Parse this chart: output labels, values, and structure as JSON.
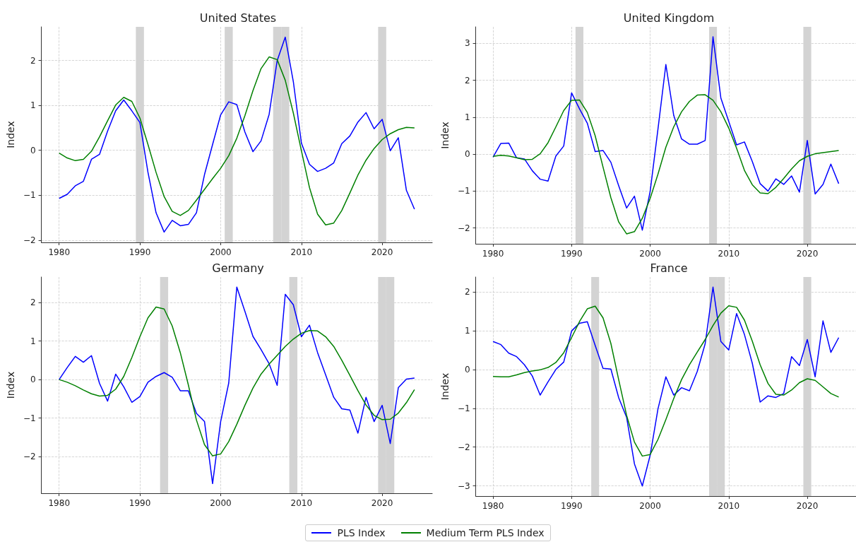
{
  "chart_data": [
    {
      "type": "line",
      "title": "United States",
      "ylabel": "Index",
      "xlim": [
        1977.8,
        2026.2
      ],
      "ylim": [
        -2.05,
        2.75
      ],
      "xticks": [
        1980,
        1990,
        2000,
        2010,
        2020
      ],
      "yticks": [
        -2,
        -1,
        0,
        1,
        2
      ],
      "grid": true,
      "legend": "bottom",
      "x": [
        1980,
        1981,
        1982,
        1983,
        1984,
        1985,
        1986,
        1987,
        1988,
        1989,
        1990,
        1991,
        1992,
        1993,
        1994,
        1995,
        1996,
        1997,
        1998,
        1999,
        2000,
        2001,
        2002,
        2003,
        2004,
        2005,
        2006,
        2007,
        2008,
        2009,
        2010,
        2011,
        2012,
        2013,
        2014,
        2015,
        2016,
        2017,
        2018,
        2019,
        2020,
        2021,
        2022,
        2023,
        2024
      ],
      "series": [
        {
          "name": "PLS Index",
          "color": "#0000ff",
          "values": [
            -1.07,
            -0.98,
            -0.79,
            -0.69,
            -0.2,
            -0.09,
            0.43,
            0.88,
            1.12,
            0.88,
            0.62,
            -0.49,
            -1.39,
            -1.82,
            -1.56,
            -1.68,
            -1.65,
            -1.39,
            -0.54,
            0.13,
            0.79,
            1.08,
            1.02,
            0.41,
            -0.03,
            0.21,
            0.8,
            2.0,
            2.52,
            1.53,
            0.16,
            -0.31,
            -0.47,
            -0.4,
            -0.28,
            0.15,
            0.32,
            0.63,
            0.84,
            0.48,
            0.69,
            -0.01,
            0.28,
            -0.89,
            -1.31
          ]
        },
        {
          "name": "Medium Term PLS Index",
          "color": "#008000",
          "values": [
            -0.06,
            -0.17,
            -0.23,
            -0.2,
            -0.02,
            0.3,
            0.66,
            1.01,
            1.18,
            1.09,
            0.72,
            0.13,
            -0.49,
            -1.03,
            -1.36,
            -1.45,
            -1.34,
            -1.11,
            -0.87,
            -0.63,
            -0.4,
            -0.12,
            0.27,
            0.77,
            1.33,
            1.82,
            2.08,
            2.02,
            1.56,
            0.83,
            -0.01,
            -0.83,
            -1.42,
            -1.66,
            -1.62,
            -1.34,
            -0.95,
            -0.55,
            -0.22,
            0.04,
            0.24,
            0.37,
            0.46,
            0.51,
            0.5
          ]
        }
      ],
      "bands": [
        {
          "axis": "x",
          "from": 1989.5,
          "to": 1990.5,
          "color": "#d3d3d3"
        },
        {
          "axis": "x",
          "from": 2000.5,
          "to": 2001.5,
          "color": "#d3d3d3"
        },
        {
          "axis": "x",
          "from": 2006.5,
          "to": 2007.5,
          "color": "#d3d3d3"
        },
        {
          "axis": "x",
          "from": 2007.5,
          "to": 2008.5,
          "color": "#d3d3d3"
        },
        {
          "axis": "x",
          "from": 2019.5,
          "to": 2020.5,
          "color": "#d3d3d3"
        }
      ]
    },
    {
      "type": "line",
      "title": "United Kingdom",
      "ylabel": "Index",
      "xlim": [
        1977.8,
        2026.2
      ],
      "ylim": [
        -2.43,
        3.45
      ],
      "xticks": [
        1980,
        1990,
        2000,
        2010,
        2020
      ],
      "yticks": [
        -2,
        -1,
        0,
        1,
        2,
        3
      ],
      "grid": true,
      "x": [
        1980,
        1981,
        1982,
        1983,
        1984,
        1985,
        1986,
        1987,
        1988,
        1989,
        1990,
        1991,
        1992,
        1993,
        1994,
        1995,
        1996,
        1997,
        1998,
        1999,
        2000,
        2001,
        2002,
        2003,
        2004,
        2005,
        2006,
        2007,
        2008,
        2009,
        2010,
        2011,
        2012,
        2013,
        2014,
        2015,
        2016,
        2017,
        2018,
        2019,
        2020,
        2021,
        2022,
        2023,
        2024
      ],
      "series": [
        {
          "color": "#0000ff",
          "values": [
            -0.08,
            0.29,
            0.3,
            -0.1,
            -0.13,
            -0.45,
            -0.68,
            -0.73,
            -0.05,
            0.22,
            1.66,
            1.23,
            0.84,
            0.07,
            0.1,
            -0.22,
            -0.86,
            -1.46,
            -1.14,
            -2.06,
            -1.01,
            0.69,
            2.43,
            1.05,
            0.41,
            0.27,
            0.27,
            0.37,
            3.18,
            1.52,
            0.89,
            0.25,
            0.33,
            -0.2,
            -0.8,
            -1.0,
            -0.67,
            -0.82,
            -0.59,
            -1.03,
            0.37,
            -1.08,
            -0.82,
            -0.27,
            -0.8
          ]
        },
        {
          "color": "#008000",
          "values": [
            -0.06,
            -0.03,
            -0.05,
            -0.1,
            -0.15,
            -0.14,
            0.01,
            0.31,
            0.74,
            1.18,
            1.46,
            1.47,
            1.13,
            0.5,
            -0.35,
            -1.18,
            -1.84,
            -2.16,
            -2.1,
            -1.74,
            -1.2,
            -0.54,
            0.19,
            0.74,
            1.15,
            1.43,
            1.6,
            1.61,
            1.46,
            1.15,
            0.71,
            0.16,
            -0.44,
            -0.83,
            -1.05,
            -1.07,
            -0.9,
            -0.66,
            -0.4,
            -0.18,
            -0.06,
            0.01,
            0.04,
            0.07,
            0.1
          ]
        }
      ],
      "bands": [
        {
          "axis": "x",
          "from": 1990.5,
          "to": 1991.5,
          "color": "#d3d3d3"
        },
        {
          "axis": "x",
          "from": 2007.5,
          "to": 2008.5,
          "color": "#d3d3d3"
        },
        {
          "axis": "x",
          "from": 2019.5,
          "to": 2020.5,
          "color": "#d3d3d3"
        }
      ]
    },
    {
      "type": "line",
      "title": "Germany",
      "ylabel": "Index",
      "xlim": [
        1977.8,
        2026.2
      ],
      "ylim": [
        -2.95,
        2.66
      ],
      "xticks": [
        1980,
        1990,
        2000,
        2010,
        2020
      ],
      "yticks": [
        -2,
        -1,
        0,
        1,
        2
      ],
      "grid": true,
      "x": [
        1980,
        1981,
        1982,
        1983,
        1984,
        1985,
        1986,
        1987,
        1988,
        1989,
        1990,
        1991,
        1992,
        1993,
        1994,
        1995,
        1996,
        1997,
        1998,
        1999,
        2000,
        2001,
        2002,
        2003,
        2004,
        2005,
        2006,
        2007,
        2008,
        2009,
        2010,
        2011,
        2012,
        2013,
        2014,
        2015,
        2016,
        2017,
        2018,
        2019,
        2020,
        2021,
        2022,
        2023,
        2024
      ],
      "series": [
        {
          "color": "#0000ff",
          "values": [
            0.0,
            0.31,
            0.6,
            0.45,
            0.62,
            -0.1,
            -0.56,
            0.14,
            -0.19,
            -0.59,
            -0.44,
            -0.07,
            0.08,
            0.18,
            0.06,
            -0.29,
            -0.29,
            -0.88,
            -1.09,
            -2.7,
            -1.09,
            -0.09,
            2.4,
            1.77,
            1.12,
            0.78,
            0.41,
            -0.15,
            2.21,
            1.94,
            1.11,
            1.41,
            0.7,
            0.12,
            -0.46,
            -0.76,
            -0.79,
            -1.39,
            -0.46,
            -1.09,
            -0.67,
            -1.66,
            -0.21,
            0.01,
            0.04
          ]
        },
        {
          "color": "#008000",
          "values": [
            0.0,
            -0.07,
            -0.16,
            -0.27,
            -0.37,
            -0.43,
            -0.41,
            -0.25,
            0.08,
            0.57,
            1.11,
            1.6,
            1.88,
            1.83,
            1.39,
            0.7,
            -0.14,
            -1.05,
            -1.69,
            -1.98,
            -1.93,
            -1.61,
            -1.16,
            -0.67,
            -0.22,
            0.14,
            0.4,
            0.63,
            0.86,
            1.05,
            1.2,
            1.27,
            1.26,
            1.11,
            0.86,
            0.5,
            0.11,
            -0.29,
            -0.66,
            -0.93,
            -1.04,
            -1.03,
            -0.87,
            -0.6,
            -0.26
          ]
        }
      ],
      "bands": [
        {
          "axis": "x",
          "from": 1992.5,
          "to": 1993.5,
          "color": "#d3d3d3"
        },
        {
          "axis": "x",
          "from": 2008.5,
          "to": 2009.5,
          "color": "#d3d3d3"
        },
        {
          "axis": "x",
          "from": 2019.5,
          "to": 2020.5,
          "color": "#d3d3d3"
        },
        {
          "axis": "x",
          "from": 2020.5,
          "to": 2021.5,
          "color": "#d3d3d3"
        }
      ]
    },
    {
      "type": "line",
      "title": "France",
      "ylabel": "Index",
      "xlim": [
        1977.8,
        2026.2
      ],
      "ylim": [
        -3.26,
        2.38
      ],
      "xticks": [
        1980,
        1990,
        2000,
        2010,
        2020
      ],
      "yticks": [
        -3,
        -2,
        -1,
        0,
        1,
        2
      ],
      "grid": true,
      "x": [
        1980,
        1981,
        1982,
        1983,
        1984,
        1985,
        1986,
        1987,
        1988,
        1989,
        1990,
        1991,
        1992,
        1993,
        1994,
        1995,
        1996,
        1997,
        1998,
        1999,
        2000,
        2001,
        2002,
        2003,
        2004,
        2005,
        2006,
        2007,
        2008,
        2009,
        2010,
        2011,
        2012,
        2013,
        2014,
        2015,
        2016,
        2017,
        2018,
        2019,
        2020,
        2021,
        2022,
        2023,
        2024
      ],
      "series": [
        {
          "color": "#0000ff",
          "values": [
            0.72,
            0.64,
            0.42,
            0.33,
            0.12,
            -0.17,
            -0.66,
            -0.32,
            0.0,
            0.19,
            0.99,
            1.19,
            1.23,
            0.62,
            0.03,
            0.01,
            -0.73,
            -1.23,
            -2.43,
            -3.0,
            -2.21,
            -1.01,
            -0.19,
            -0.66,
            -0.47,
            -0.55,
            -0.05,
            0.66,
            2.12,
            0.72,
            0.5,
            1.44,
            0.9,
            0.16,
            -0.84,
            -0.68,
            -0.72,
            -0.62,
            0.33,
            0.1,
            0.77,
            -0.19,
            1.25,
            0.44,
            0.82
          ]
        },
        {
          "color": "#008000",
          "values": [
            -0.18,
            -0.19,
            -0.19,
            -0.14,
            -0.08,
            -0.04,
            -0.01,
            0.05,
            0.18,
            0.43,
            0.82,
            1.23,
            1.56,
            1.63,
            1.33,
            0.67,
            -0.27,
            -1.18,
            -1.87,
            -2.23,
            -2.19,
            -1.8,
            -1.29,
            -0.75,
            -0.26,
            0.12,
            0.45,
            0.77,
            1.13,
            1.45,
            1.64,
            1.6,
            1.27,
            0.73,
            0.12,
            -0.36,
            -0.64,
            -0.66,
            -0.53,
            -0.34,
            -0.24,
            -0.28,
            -0.45,
            -0.62,
            -0.71
          ]
        }
      ],
      "bands": [
        {
          "axis": "x",
          "from": 1992.5,
          "to": 1993.5,
          "color": "#d3d3d3"
        },
        {
          "axis": "x",
          "from": 2007.5,
          "to": 2008.5,
          "color": "#d3d3d3"
        },
        {
          "axis": "x",
          "from": 2008.5,
          "to": 2009.5,
          "color": "#d3d3d3"
        },
        {
          "axis": "x",
          "from": 2019.5,
          "to": 2020.5,
          "color": "#d3d3d3"
        }
      ]
    }
  ]
}
